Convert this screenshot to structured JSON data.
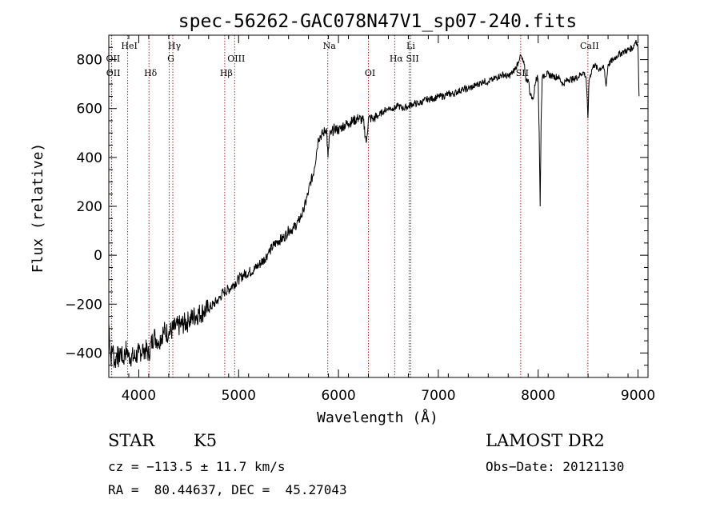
{
  "chart_data": {
    "type": "line",
    "title": "spec-56262-GAC078N47V1_sp07-240.fits",
    "xlabel": "Wavelength (Å)",
    "ylabel": "Flux (relative)",
    "xlim": [
      3700,
      9100
    ],
    "ylim": [
      -500,
      900
    ],
    "xticks": [
      4000,
      5000,
      6000,
      7000,
      8000,
      9000
    ],
    "xtick_labels": [
      "4000",
      "5000",
      "6000",
      "7000",
      "8000",
      "9000"
    ],
    "yticks": [
      -400,
      -200,
      0,
      200,
      400,
      600,
      800
    ],
    "ytick_labels": [
      "−400",
      "−200",
      "0",
      "200",
      "400",
      "600",
      "800"
    ],
    "grid": false,
    "line_color": "#000000",
    "marker_color": "#b22222",
    "series": [
      {
        "x": [
          3700,
          3720,
          3740,
          3760,
          3780,
          3800,
          3820,
          3840,
          3860,
          3880,
          3900,
          3950,
          4000,
          4050,
          4100,
          4150,
          4200,
          4250,
          4300,
          4350,
          4400,
          4450,
          4500,
          4550,
          4600,
          4650,
          4700,
          4750,
          4800,
          4850,
          4900,
          4950,
          5000,
          5050,
          5100,
          5150,
          5200,
          5250,
          5300,
          5350,
          5400,
          5450,
          5500,
          5550,
          5600,
          5650,
          5700,
          5720,
          5740,
          5760,
          5780,
          5800,
          5850,
          5880,
          5895,
          5910,
          5930,
          5960,
          6000,
          6050,
          6100,
          6150,
          6200,
          6250,
          6280,
          6300,
          6320,
          6350,
          6400,
          6450,
          6500,
          6550,
          6600,
          6650,
          6700,
          6750,
          6800,
          6850,
          6900,
          6950,
          7000,
          7050,
          7100,
          7150,
          7200,
          7250,
          7300,
          7350,
          7400,
          7450,
          7500,
          7550,
          7600,
          7650,
          7700,
          7750,
          7780,
          7800,
          7820,
          7840,
          7860,
          7880,
          7900,
          7920,
          7950,
          7980,
          8000,
          8010,
          8020,
          8030,
          8040,
          8060,
          8100,
          8150,
          8200,
          8250,
          8300,
          8350,
          8400,
          8450,
          8480,
          8498,
          8510,
          8540,
          8560,
          8600,
          8650,
          8662,
          8680,
          8700,
          8750,
          8800,
          8850,
          8900,
          8950,
          8980,
          9000,
          9010
        ],
        "y": [
          -280,
          -420,
          -380,
          -450,
          -400,
          -430,
          -380,
          -440,
          -400,
          -380,
          -410,
          -420,
          -400,
          -380,
          -400,
          -330,
          -350,
          -310,
          -320,
          -300,
          -290,
          -280,
          -270,
          -250,
          -240,
          -230,
          -220,
          -200,
          -180,
          -150,
          -140,
          -120,
          -100,
          -80,
          -70,
          -60,
          -40,
          -20,
          10,
          40,
          60,
          70,
          100,
          110,
          140,
          180,
          260,
          300,
          320,
          360,
          420,
          480,
          500,
          520,
          400,
          490,
          500,
          520,
          510,
          530,
          540,
          550,
          560,
          550,
          460,
          560,
          560,
          560,
          570,
          590,
          600,
          600,
          610,
          600,
          610,
          620,
          620,
          630,
          640,
          640,
          650,
          650,
          660,
          660,
          670,
          680,
          680,
          690,
          700,
          710,
          710,
          720,
          730,
          740,
          730,
          750,
          770,
          790,
          820,
          800,
          780,
          710,
          720,
          660,
          640,
          730,
          720,
          500,
          200,
          550,
          720,
          740,
          740,
          730,
          730,
          700,
          720,
          720,
          730,
          750,
          730,
          560,
          720,
          760,
          780,
          760,
          770,
          760,
          690,
          780,
          800,
          820,
          830,
          840,
          850,
          880,
          850,
          650
        ]
      }
    ],
    "lines": [
      {
        "name": "HeI",
        "x": 3889,
        "row": 0
      },
      {
        "name": "OII",
        "x": 3727,
        "row": 1
      },
      {
        "name": "OII",
        "x": 3729,
        "row": 2
      },
      {
        "name": "Hδ",
        "x": 4102,
        "row": 2
      },
      {
        "name": "Hγ",
        "x": 4341,
        "row": 0
      },
      {
        "name": "G",
        "x": 4305,
        "row": 1
      },
      {
        "name": "OIII",
        "x": 4960,
        "row": 1
      },
      {
        "name": "Hβ",
        "x": 4861,
        "row": 2
      },
      {
        "name": "Na",
        "x": 5893,
        "row": 0
      },
      {
        "name": "OI",
        "x": 6300,
        "row": 2
      },
      {
        "name": "Li",
        "x": 6708,
        "row": 0
      },
      {
        "name": "Hα",
        "x": 6563,
        "row": 1
      },
      {
        "name": "SII",
        "x": 6725,
        "row": 1
      },
      {
        "name": "SII",
        "x": 7825,
        "row": 2
      },
      {
        "name": "CaII",
        "x": 8498,
        "row": 0
      }
    ]
  },
  "info": {
    "object_class": "STAR",
    "subclass": "K5",
    "survey": "LAMOST DR2",
    "cz": "cz = −113.5 ± 11.7 km/s",
    "obs_date": "Obs−Date: 20121130",
    "coords": "RA =  80.44637, DEC =  45.27043"
  }
}
